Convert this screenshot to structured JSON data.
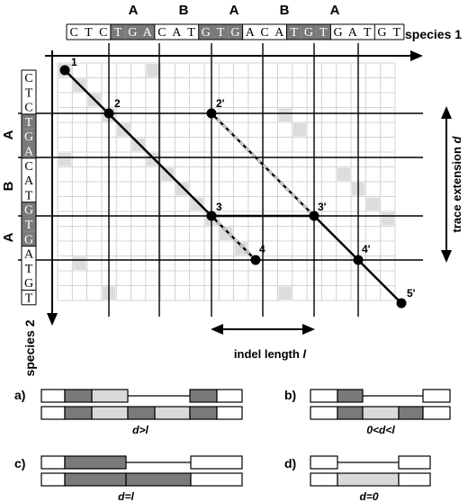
{
  "species1": {
    "sequence": "CTCTGACATGTGACATGTGATGT",
    "label": "species 1",
    "segments": [
      "A",
      "B",
      "A",
      "B",
      "A"
    ],
    "shaded_indices": [
      3,
      4,
      5,
      9,
      10,
      11,
      15,
      16,
      17
    ]
  },
  "species2": {
    "sequence": "CTCTGACATGTGATGT",
    "label": "species 2",
    "segments": [
      "A",
      "B",
      "A"
    ],
    "shaded_indices": [
      3,
      4,
      5,
      9,
      10,
      11
    ]
  },
  "points": [
    {
      "label": "1"
    },
    {
      "label": "2"
    },
    {
      "label": "2'"
    },
    {
      "label": "3"
    },
    {
      "label": "3'"
    },
    {
      "label": "4"
    },
    {
      "label": "4'"
    },
    {
      "label": "5'"
    }
  ],
  "axis_labels": {
    "trace_extension": "trace extension",
    "trace_extension_var": "d",
    "indel_length": "indel length",
    "indel_length_var": "l"
  },
  "panels": [
    {
      "letter": "a)",
      "caption": "d>l"
    },
    {
      "letter": "b)",
      "caption": "0<d<l"
    },
    {
      "letter": "c)",
      "caption": "d=l"
    },
    {
      "letter": "d)",
      "caption": "d=0"
    }
  ],
  "colors": {
    "dark_box": "#7a7a7a",
    "light_box": "#d9d9d9",
    "grid_line": "#c8c8c8",
    "match_cell": "#dcdcdc"
  }
}
